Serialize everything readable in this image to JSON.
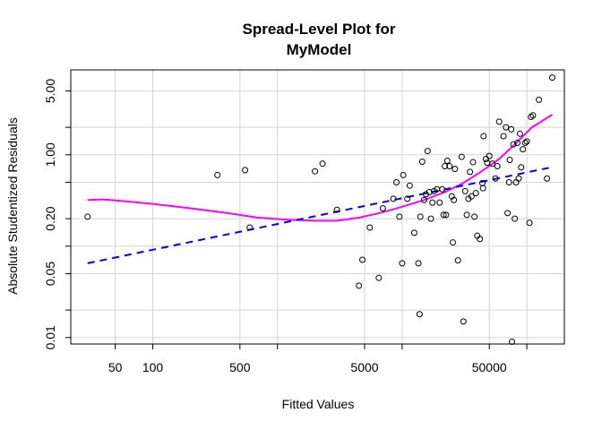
{
  "chart_data": {
    "type": "scatter",
    "title_lines": [
      "Spread-Level Plot for",
      "MyModel"
    ],
    "xlabel": "Fitted Values",
    "ylabel": "Absolute Studentized Residuals",
    "x_scale": "log",
    "y_scale": "log",
    "xlim": [
      22,
      200000
    ],
    "ylim": [
      0.0085,
      8.5
    ],
    "grid": true,
    "x_ticks": [
      {
        "value": 50,
        "label": "50"
      },
      {
        "value": 100,
        "label": "100"
      },
      {
        "value": 500,
        "label": "500"
      },
      {
        "value": 5000,
        "label": "5000"
      },
      {
        "value": 50000,
        "label": "50000"
      }
    ],
    "x_grid": [
      50,
      100,
      500,
      1000,
      5000,
      10000,
      50000,
      100000
    ],
    "y_ticks": [
      {
        "value": 0.01,
        "label": "0.01"
      },
      {
        "value": 0.05,
        "label": "0.05"
      },
      {
        "value": 0.2,
        "label": "0.20"
      },
      {
        "value": 1,
        "label": "1.00"
      },
      {
        "value": 5,
        "label": "5.00"
      }
    ],
    "y_grid": [
      0.01,
      0.02,
      0.05,
      0.1,
      0.2,
      0.5,
      1,
      2,
      5
    ],
    "points": [
      [
        30,
        0.21
      ],
      [
        330,
        0.6
      ],
      [
        550,
        0.68
      ],
      [
        600,
        0.16
      ],
      [
        2000,
        0.66
      ],
      [
        2300,
        0.8
      ],
      [
        3000,
        0.25
      ],
      [
        4500,
        0.037
      ],
      [
        4800,
        0.071
      ],
      [
        5500,
        0.16
      ],
      [
        6500,
        0.045
      ],
      [
        7000,
        0.26
      ],
      [
        8500,
        0.33
      ],
      [
        9000,
        0.5
      ],
      [
        9500,
        0.21
      ],
      [
        10000,
        0.065
      ],
      [
        10200,
        0.6
      ],
      [
        11000,
        0.33
      ],
      [
        11500,
        0.46
      ],
      [
        12500,
        0.14
      ],
      [
        13500,
        0.065
      ],
      [
        13800,
        0.018
      ],
      [
        14000,
        0.21
      ],
      [
        14500,
        0.84
      ],
      [
        15000,
        0.32
      ],
      [
        15500,
        0.37
      ],
      [
        16000,
        1.1
      ],
      [
        16500,
        0.39
      ],
      [
        17000,
        0.2
      ],
      [
        17500,
        0.3
      ],
      [
        18000,
        0.4
      ],
      [
        19000,
        0.42
      ],
      [
        20000,
        0.3
      ],
      [
        21000,
        0.42
      ],
      [
        21500,
        0.22
      ],
      [
        22000,
        0.75
      ],
      [
        22500,
        0.22
      ],
      [
        23000,
        0.86
      ],
      [
        24000,
        0.75
      ],
      [
        25000,
        0.35
      ],
      [
        25500,
        0.11
      ],
      [
        26000,
        0.32
      ],
      [
        26500,
        0.7
      ],
      [
        28000,
        0.07
      ],
      [
        30000,
        0.95
      ],
      [
        31000,
        0.015
      ],
      [
        32000,
        0.4
      ],
      [
        33000,
        0.22
      ],
      [
        34000,
        0.33
      ],
      [
        35000,
        0.65
      ],
      [
        36000,
        0.35
      ],
      [
        37000,
        0.83
      ],
      [
        38000,
        0.21
      ],
      [
        39000,
        0.38
      ],
      [
        40000,
        0.13
      ],
      [
        42000,
        0.12
      ],
      [
        44000,
        0.49
      ],
      [
        44500,
        0.43
      ],
      [
        45000,
        1.6
      ],
      [
        47000,
        0.9
      ],
      [
        48000,
        0.82
      ],
      [
        50000,
        0.97
      ],
      [
        53000,
        0.8
      ],
      [
        56000,
        0.55
      ],
      [
        58000,
        0.75
      ],
      [
        60000,
        2.3
      ],
      [
        65000,
        1.6
      ],
      [
        68000,
        2.0
      ],
      [
        70000,
        0.23
      ],
      [
        72000,
        0.5
      ],
      [
        73000,
        0.88
      ],
      [
        75000,
        1.9
      ],
      [
        76000,
        0.009
      ],
      [
        78000,
        1.3
      ],
      [
        80000,
        0.2
      ],
      [
        82000,
        0.5
      ],
      [
        84000,
        1.35
      ],
      [
        86000,
        0.55
      ],
      [
        88000,
        1.7
      ],
      [
        90000,
        0.73
      ],
      [
        93000,
        1.15
      ],
      [
        97000,
        1.35
      ],
      [
        100000,
        1.4
      ],
      [
        105000,
        0.18
      ],
      [
        108000,
        2.6
      ],
      [
        112000,
        2.7
      ],
      [
        125000,
        4.0
      ],
      [
        145000,
        0.55
      ],
      [
        160000,
        7.0
      ]
    ],
    "smooth_line": {
      "color": "#ff00ff",
      "points": [
        [
          30,
          0.32
        ],
        [
          40,
          0.325
        ],
        [
          60,
          0.31
        ],
        [
          100,
          0.29
        ],
        [
          200,
          0.26
        ],
        [
          400,
          0.23
        ],
        [
          700,
          0.205
        ],
        [
          1200,
          0.195
        ],
        [
          2000,
          0.19
        ],
        [
          3000,
          0.19
        ],
        [
          4500,
          0.205
        ],
        [
          7000,
          0.235
        ],
        [
          10000,
          0.27
        ],
        [
          15000,
          0.32
        ],
        [
          22000,
          0.39
        ],
        [
          30000,
          0.48
        ],
        [
          42000,
          0.64
        ],
        [
          60000,
          0.9
        ],
        [
          80000,
          1.3
        ],
        [
          110000,
          2.0
        ],
        [
          160000,
          2.75
        ]
      ]
    },
    "fit_line": {
      "color": "#0000ee",
      "dash": true,
      "points": [
        [
          30,
          0.065
        ],
        [
          150000,
          0.72
        ]
      ]
    }
  }
}
